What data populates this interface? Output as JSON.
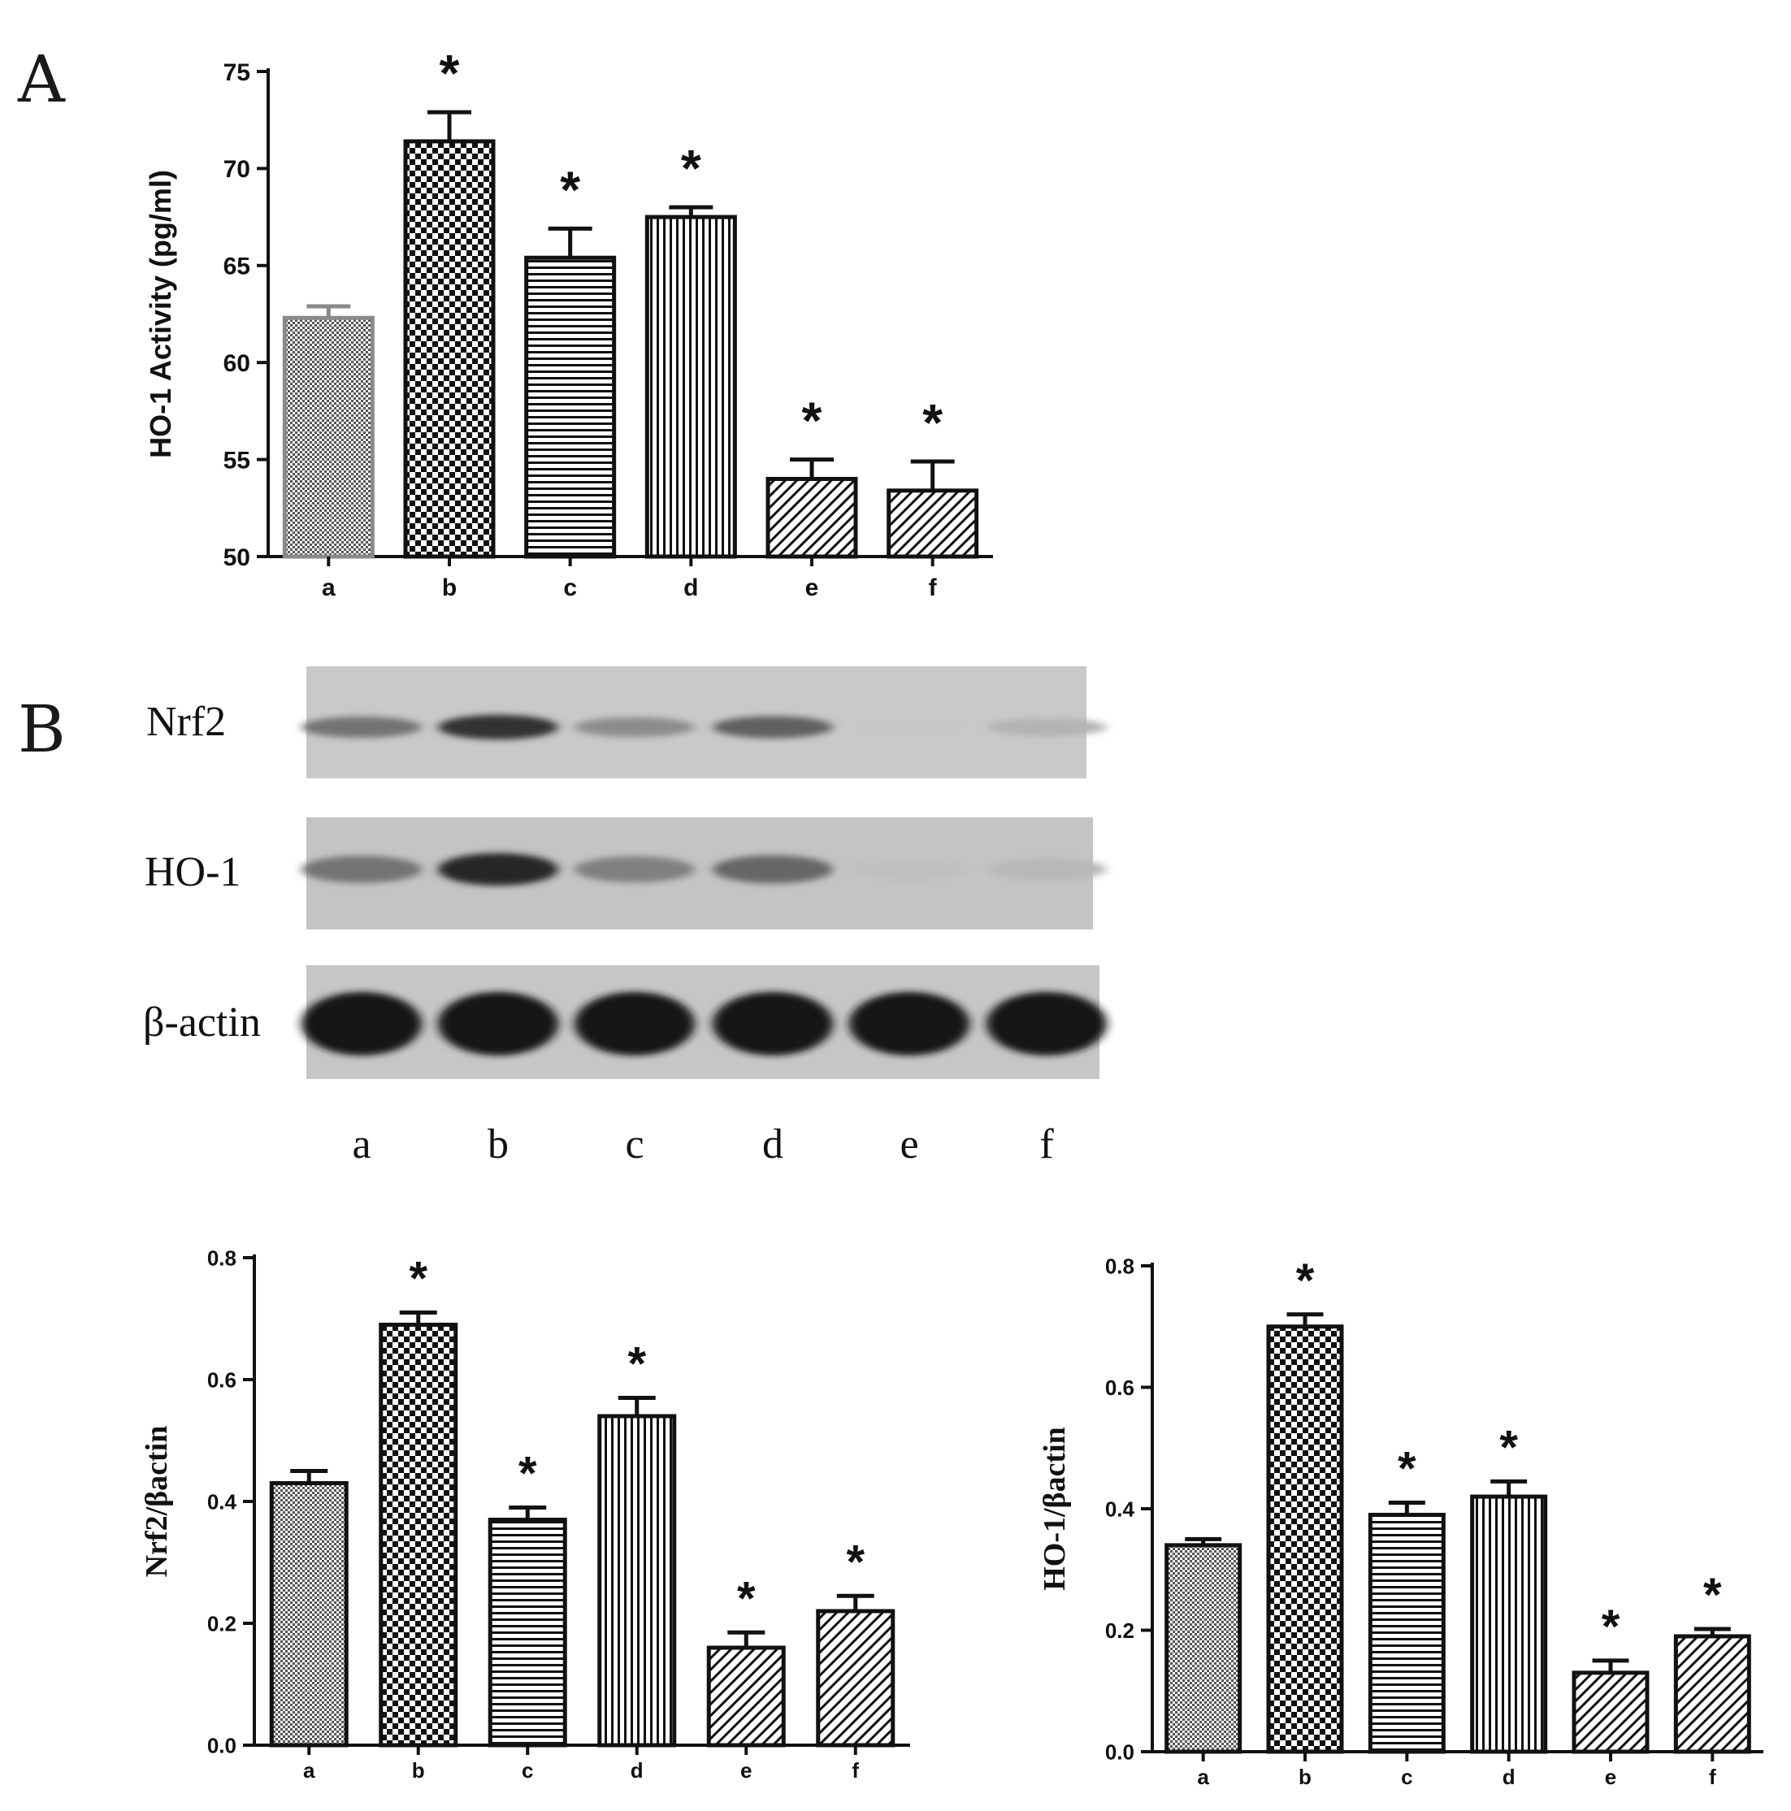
{
  "panels": {
    "A": "A",
    "B": "B"
  },
  "chart_data": [
    {
      "id": "ho1_activity",
      "type": "bar",
      "ylabel": "HO-1 Activity (pg/ml)",
      "categories": [
        "a",
        "b",
        "c",
        "d",
        "e",
        "f"
      ],
      "values": [
        62.3,
        71.4,
        65.4,
        67.5,
        54.0,
        53.4
      ],
      "errors": [
        0.6,
        1.5,
        1.5,
        0.5,
        1.0,
        1.5
      ],
      "significant": [
        false,
        true,
        true,
        true,
        true,
        true
      ],
      "ylim": [
        50,
        75
      ],
      "yticks": [
        "50",
        "55",
        "60",
        "65",
        "70",
        "75"
      ],
      "significance_marker": "*"
    },
    {
      "id": "nrf2_ratio",
      "type": "bar",
      "ylabel": "Nrf2/βactin",
      "categories": [
        "a",
        "b",
        "c",
        "d",
        "e",
        "f"
      ],
      "values": [
        0.43,
        0.69,
        0.37,
        0.54,
        0.16,
        0.22
      ],
      "errors": [
        0.02,
        0.02,
        0.02,
        0.03,
        0.025,
        0.025
      ],
      "significant": [
        false,
        true,
        true,
        true,
        true,
        true
      ],
      "ylim": [
        0,
        0.8
      ],
      "yticks": [
        "0.0",
        "0.2",
        "0.4",
        "0.6",
        "0.8"
      ],
      "significance_marker": "*"
    },
    {
      "id": "ho1_ratio",
      "type": "bar",
      "ylabel": "HO-1/βactin",
      "categories": [
        "a",
        "b",
        "c",
        "d",
        "e",
        "f"
      ],
      "values": [
        0.34,
        0.7,
        0.39,
        0.42,
        0.13,
        0.19
      ],
      "errors": [
        0.01,
        0.02,
        0.02,
        0.025,
        0.02,
        0.012
      ],
      "significant": [
        false,
        true,
        true,
        true,
        true,
        true
      ],
      "ylim": [
        0,
        0.8
      ],
      "yticks": [
        "0.0",
        "0.2",
        "0.4",
        "0.6",
        "0.8"
      ],
      "significance_marker": "*"
    }
  ],
  "blot": {
    "rows": [
      {
        "label": "Nrf2",
        "intensities": [
          0.55,
          0.8,
          0.45,
          0.62,
          0.22,
          0.3
        ]
      },
      {
        "label": "HO-1",
        "intensities": [
          0.55,
          0.85,
          0.5,
          0.6,
          0.25,
          0.28
        ]
      },
      {
        "label": "β-actin",
        "intensities": [
          0.92,
          0.92,
          0.92,
          0.92,
          0.92,
          0.92
        ]
      }
    ],
    "lanes": [
      "a",
      "b",
      "c",
      "d",
      "e",
      "f"
    ]
  }
}
